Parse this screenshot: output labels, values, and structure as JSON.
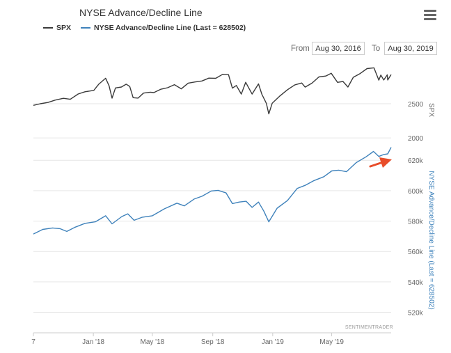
{
  "header": {
    "title": "NYSE Advance/Decline Line",
    "menu_icon": "hamburger-menu-icon"
  },
  "range_selector": {
    "from_label": "From",
    "from_value": "Aug 30, 2016",
    "to_label": "To",
    "to_value": "Aug 30, 2019"
  },
  "colors": {
    "spx": "#3a3a3a",
    "ad_line": "#3f82bb",
    "arrow": "#e84d2a",
    "grid": "#e6e6e6",
    "axis_label_right": "#666666"
  },
  "watermark": "SENTIMENTRADER",
  "annotation": {
    "type": "arrow",
    "color": "#e84d2a",
    "points_to": "latest A/D line high"
  },
  "chart_data": {
    "type": "line",
    "legend": [
      "SPX",
      "NYSE Advance/Decline Line (Last = 628502)"
    ],
    "x_tick_labels": [
      "7",
      "Jan '18",
      "May '18",
      "Sep '18",
      "Jan '19",
      "May '19"
    ],
    "x_range": [
      "2017-09-01",
      "2019-08-30"
    ],
    "panes": [
      {
        "name": "SPX",
        "axis_label": "SPX",
        "y_ticks": [
          2000,
          2500
        ],
        "y_tick_labels": [
          "2000",
          "2500"
        ],
        "ylim": [
          1940,
          3080
        ],
        "series": [
          {
            "name": "SPX",
            "color": "#3a3a3a",
            "points": [
              [
                "2017-09-01",
                2476
              ],
              [
                "2017-09-15",
                2500
              ],
              [
                "2017-10-01",
                2519
              ],
              [
                "2017-10-15",
                2553
              ],
              [
                "2017-11-01",
                2579
              ],
              [
                "2017-11-15",
                2565
              ],
              [
                "2017-12-01",
                2642
              ],
              [
                "2017-12-15",
                2675
              ],
              [
                "2018-01-02",
                2695
              ],
              [
                "2018-01-12",
                2786
              ],
              [
                "2018-01-26",
                2872
              ],
              [
                "2018-02-02",
                2762
              ],
              [
                "2018-02-08",
                2581
              ],
              [
                "2018-02-15",
                2731
              ],
              [
                "2018-02-27",
                2744
              ],
              [
                "2018-03-09",
                2786
              ],
              [
                "2018-03-16",
                2752
              ],
              [
                "2018-03-23",
                2588
              ],
              [
                "2018-04-02",
                2582
              ],
              [
                "2018-04-13",
                2656
              ],
              [
                "2018-04-27",
                2669
              ],
              [
                "2018-05-04",
                2663
              ],
              [
                "2018-05-18",
                2712
              ],
              [
                "2018-06-01",
                2734
              ],
              [
                "2018-06-15",
                2779
              ],
              [
                "2018-06-29",
                2718
              ],
              [
                "2018-07-13",
                2801
              ],
              [
                "2018-07-27",
                2818
              ],
              [
                "2018-08-10",
                2833
              ],
              [
                "2018-08-24",
                2874
              ],
              [
                "2018-09-07",
                2871
              ],
              [
                "2018-09-21",
                2929
              ],
              [
                "2018-10-03",
                2925
              ],
              [
                "2018-10-11",
                2728
              ],
              [
                "2018-10-19",
                2767
              ],
              [
                "2018-10-29",
                2641
              ],
              [
                "2018-11-07",
                2813
              ],
              [
                "2018-11-20",
                2641
              ],
              [
                "2018-12-03",
                2790
              ],
              [
                "2018-12-10",
                2637
              ],
              [
                "2018-12-19",
                2506
              ],
              [
                "2018-12-24",
                2351
              ],
              [
                "2018-12-31",
                2507
              ],
              [
                "2019-01-15",
                2610
              ],
              [
                "2019-01-31",
                2704
              ],
              [
                "2019-02-15",
                2776
              ],
              [
                "2019-03-01",
                2803
              ],
              [
                "2019-03-08",
                2743
              ],
              [
                "2019-03-22",
                2801
              ],
              [
                "2019-04-05",
                2892
              ],
              [
                "2019-04-19",
                2905
              ],
              [
                "2019-04-30",
                2946
              ],
              [
                "2019-05-13",
                2812
              ],
              [
                "2019-05-24",
                2826
              ],
              [
                "2019-06-03",
                2744
              ],
              [
                "2019-06-14",
                2887
              ],
              [
                "2019-06-28",
                2942
              ],
              [
                "2019-07-12",
                3014
              ],
              [
                "2019-07-26",
                3025
              ],
              [
                "2019-08-05",
                2845
              ],
              [
                "2019-08-09",
                2919
              ],
              [
                "2019-08-15",
                2847
              ],
              [
                "2019-08-22",
                2922
              ],
              [
                "2019-08-23",
                2847
              ],
              [
                "2019-08-30",
                2926
              ]
            ]
          }
        ]
      },
      {
        "name": "NYSE Advance/Decline Line",
        "axis_label": "NYSE Advance/Decline Line (Last = 628502)",
        "y_ticks": [
          520000,
          540000,
          560000,
          580000,
          600000,
          620000
        ],
        "y_tick_labels": [
          "520k",
          "540k",
          "560k",
          "580k",
          "600k",
          "620k"
        ],
        "ylim": [
          512000,
          632000
        ],
        "series": [
          {
            "name": "NYSE Advance/Decline Line (Last = 628502)",
            "color": "#3f82bb",
            "points": [
              [
                "2017-09-01",
                571500
              ],
              [
                "2017-09-20",
                574500
              ],
              [
                "2017-10-10",
                575500
              ],
              [
                "2017-10-25",
                575000
              ],
              [
                "2017-11-08",
                573200
              ],
              [
                "2017-11-25",
                576000
              ],
              [
                "2017-12-15",
                578500
              ],
              [
                "2018-01-05",
                579500
              ],
              [
                "2018-01-26",
                583500
              ],
              [
                "2018-02-08",
                578200
              ],
              [
                "2018-02-28",
                583000
              ],
              [
                "2018-03-12",
                584800
              ],
              [
                "2018-03-25",
                580500
              ],
              [
                "2018-04-10",
                582500
              ],
              [
                "2018-05-01",
                583500
              ],
              [
                "2018-05-25",
                588000
              ],
              [
                "2018-06-20",
                591800
              ],
              [
                "2018-07-05",
                590000
              ],
              [
                "2018-07-25",
                594500
              ],
              [
                "2018-08-10",
                596300
              ],
              [
                "2018-08-29",
                599800
              ],
              [
                "2018-09-12",
                600200
              ],
              [
                "2018-09-28",
                598500
              ],
              [
                "2018-10-11",
                591500
              ],
              [
                "2018-10-25",
                592500
              ],
              [
                "2018-11-08",
                593000
              ],
              [
                "2018-11-20",
                589000
              ],
              [
                "2018-12-03",
                592500
              ],
              [
                "2018-12-14",
                586500
              ],
              [
                "2018-12-24",
                579500
              ],
              [
                "2019-01-10",
                588500
              ],
              [
                "2019-01-31",
                593500
              ],
              [
                "2019-02-20",
                601500
              ],
              [
                "2019-03-08",
                603500
              ],
              [
                "2019-03-25",
                606500
              ],
              [
                "2019-04-15",
                609200
              ],
              [
                "2019-05-01",
                613000
              ],
              [
                "2019-05-15",
                613500
              ],
              [
                "2019-05-31",
                612500
              ],
              [
                "2019-06-20",
                618500
              ],
              [
                "2019-07-10",
                622300
              ],
              [
                "2019-07-25",
                625800
              ],
              [
                "2019-08-05",
                622500
              ],
              [
                "2019-08-15",
                623800
              ],
              [
                "2019-08-23",
                624200
              ],
              [
                "2019-08-30",
                628502
              ]
            ]
          }
        ]
      }
    ]
  }
}
